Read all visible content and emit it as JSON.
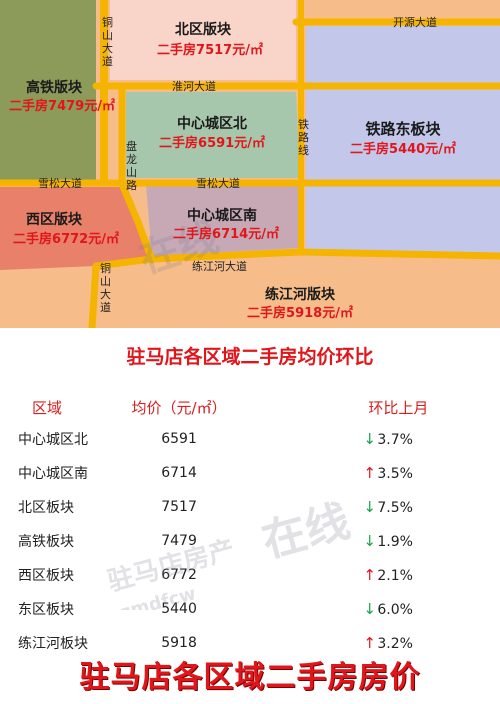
{
  "map": {
    "regions": {
      "north": {
        "name": "北区版块",
        "price": "二手房7517元/㎡",
        "color": "#f8d4c9"
      },
      "gaotie": {
        "name": "高铁版块",
        "price": "二手房7479元/㎡",
        "color": "#8c9a5a"
      },
      "center_north": {
        "name": "中心城区北",
        "price": "二手房6591元/㎡",
        "color": "#a7c7ad"
      },
      "railway_east": {
        "name": "铁路东板块",
        "price": "二手房5440元/㎡",
        "color": "#c3c7e9"
      },
      "west": {
        "name": "西区版块",
        "price": "二手房6772元/㎡",
        "color": "#e8806a"
      },
      "center_south": {
        "name": "中心城区南",
        "price": "二手房6714元/㎡",
        "color": "#c7a9b6"
      },
      "lianjianghe": {
        "name": "练江河版块",
        "price": "二手房5918元/㎡",
        "color": "#f6bd8b"
      }
    },
    "roads": {
      "tongshan_top": "铜山大道",
      "kaiyuan": "开源大道",
      "huaihe": "淮河大道",
      "tielu": "铁路线",
      "panlong": "盘龙山路",
      "xuesong_left": "雪松大道",
      "xuesong_right": "雪松大道",
      "lianjianghe": "练江河大道",
      "tongshan_bottom": "铜山大道"
    },
    "road_color": "#f5b400"
  },
  "table": {
    "title": "驻马店各区域二手房均价环比",
    "headers": {
      "region": "区域",
      "price": "均价（元/㎡）",
      "change": "环比上月"
    },
    "rows": [
      {
        "region": "中心城区北",
        "price": "6591",
        "direction": "down",
        "arrow": "↓",
        "change": "3.7%"
      },
      {
        "region": "中心城区南",
        "price": "6714",
        "direction": "up",
        "arrow": "↑",
        "change": "3.5%"
      },
      {
        "region": "北区板块",
        "price": "7517",
        "direction": "down",
        "arrow": "↓",
        "change": "7.5%"
      },
      {
        "region": "高铁板块",
        "price": "7479",
        "direction": "down",
        "arrow": "↓",
        "change": "1.9%"
      },
      {
        "region": "西区板块",
        "price": "6772",
        "direction": "up",
        "arrow": "↑",
        "change": "2.1%"
      },
      {
        "region": "东区板块",
        "price": "5440",
        "direction": "down",
        "arrow": "↓",
        "change": "6.0%"
      },
      {
        "region": "练江河板块",
        "price": "5918",
        "direction": "up",
        "arrow": "↑",
        "change": "3.2%"
      }
    ]
  },
  "bottom_title": "驻马店各区域二手房房价",
  "watermark": {
    "brand": "驻马店房产",
    "domain": "zmdfcw",
    "suffix": "在线"
  }
}
